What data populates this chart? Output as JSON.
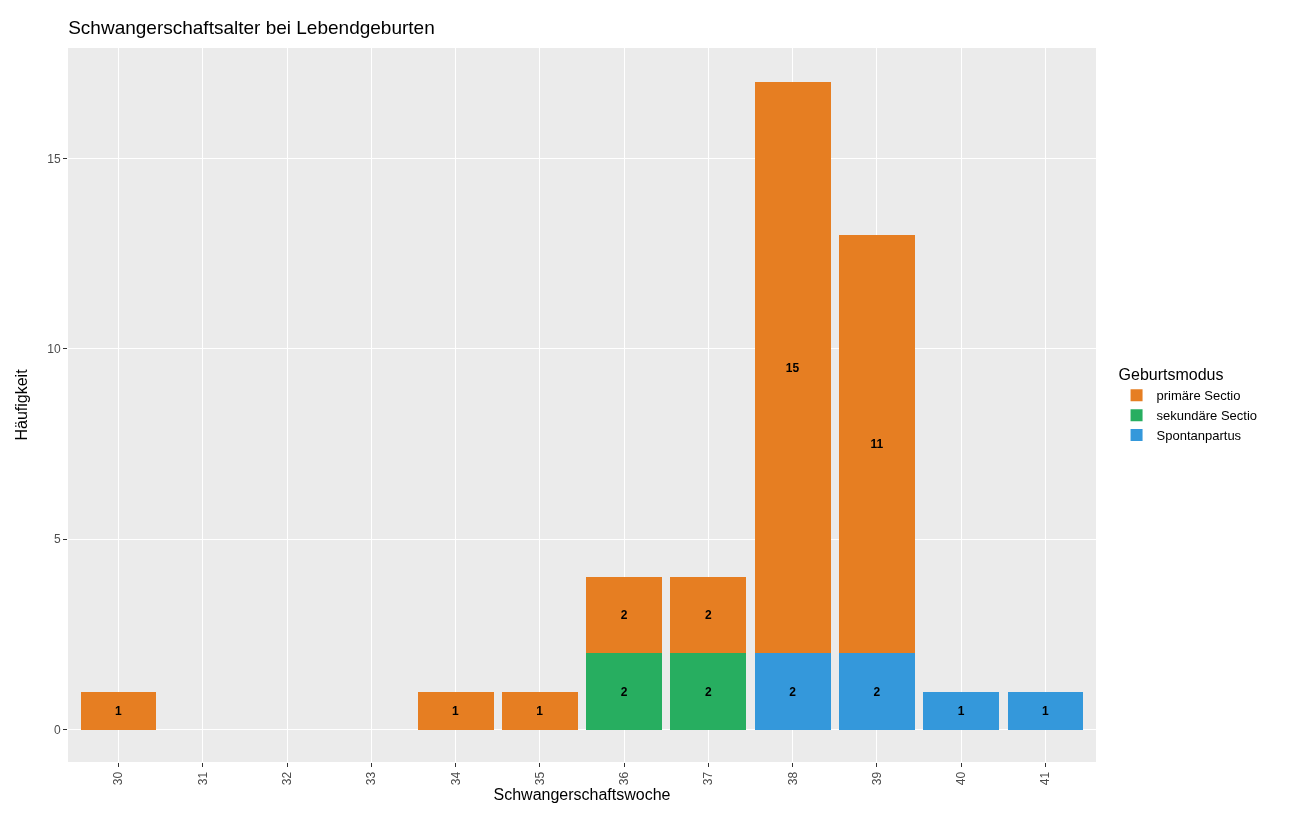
{
  "chart_data": {
    "type": "bar",
    "title": "Schwangerschaftsalter bei Lebendgeburten",
    "xlabel": "Schwangerschaftswoche",
    "ylabel": "Häufigkeit",
    "legend_title": "Geburtsmodus",
    "categories": [
      "30",
      "31",
      "32",
      "33",
      "34",
      "35",
      "36",
      "37",
      "38",
      "39",
      "40",
      "41"
    ],
    "stacked": true,
    "series": [
      {
        "name": "Spontanpartus",
        "color": "#3498db",
        "values": [
          null,
          null,
          null,
          null,
          null,
          null,
          null,
          null,
          2,
          2,
          1,
          1
        ]
      },
      {
        "name": "sekundäre Sectio",
        "color": "#27ae60",
        "values": [
          null,
          null,
          null,
          null,
          null,
          null,
          2,
          2,
          null,
          null,
          null,
          null
        ]
      },
      {
        "name": "primäre Sectio",
        "color": "#e67e22",
        "values": [
          1,
          null,
          null,
          null,
          1,
          1,
          2,
          2,
          15,
          11,
          null,
          null
        ]
      }
    ],
    "ylim": [
      -0.85,
      17.9
    ],
    "yticks": [
      0,
      5,
      10,
      15
    ],
    "grid": true,
    "legend": "right",
    "data_labels": true
  }
}
